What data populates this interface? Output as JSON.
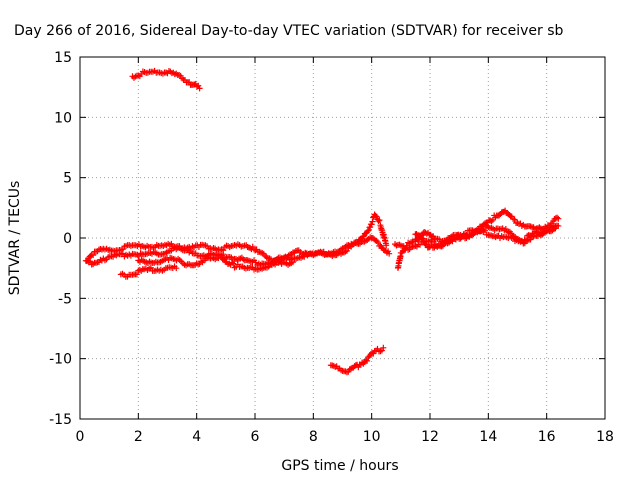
{
  "chart_data": {
    "type": "scatter",
    "title": "Day 266 of 2016, Sidereal Day-to-day VTEC variation (SDTVAR) for receiver sb",
    "xlabel": "GPS time / hours",
    "ylabel": "SDTVAR / TECUs",
    "xlim": [
      0,
      18
    ],
    "ylim": [
      -15,
      15
    ],
    "xticks": [
      0,
      2,
      4,
      6,
      8,
      10,
      12,
      14,
      16,
      18
    ],
    "yticks": [
      -15,
      -10,
      -5,
      0,
      5,
      10,
      15
    ],
    "xtick_labels": [
      "0",
      "2",
      "4",
      "6",
      "8",
      "10",
      "12",
      "14",
      "16",
      "18"
    ],
    "ytick_labels": [
      "-15",
      "-10",
      "-5",
      "0",
      "5",
      "10",
      "15"
    ],
    "grid": true,
    "marker": "plus",
    "color": "#ff0000",
    "series": [
      {
        "points": [
          [
            1.8,
            13.4
          ],
          [
            2.1,
            13.6
          ],
          [
            2.5,
            13.7
          ],
          [
            2.9,
            13.8
          ],
          [
            3.3,
            13.5
          ],
          [
            3.7,
            13.0
          ],
          [
            4.1,
            12.4
          ]
        ]
      },
      {
        "points": [
          [
            0.2,
            -1.9
          ],
          [
            0.4,
            -1.3
          ],
          [
            0.8,
            -1.0
          ],
          [
            1.3,
            -0.9
          ],
          [
            1.8,
            -0.7
          ],
          [
            2.3,
            -0.6
          ],
          [
            2.8,
            -0.7
          ],
          [
            3.3,
            -0.6
          ],
          [
            3.8,
            -0.8
          ],
          [
            4.3,
            -0.7
          ],
          [
            4.8,
            -0.9
          ],
          [
            5.3,
            -0.7
          ],
          [
            5.7,
            -0.5
          ],
          [
            6.1,
            -1.2
          ],
          [
            6.6,
            -1.8
          ],
          [
            7.1,
            -1.6
          ],
          [
            7.5,
            -1.1
          ],
          [
            8.0,
            -1.3
          ],
          [
            8.5,
            -1.5
          ],
          [
            9.0,
            -1.1
          ],
          [
            9.5,
            -0.5
          ],
          [
            9.9,
            0.8
          ],
          [
            10.1,
            1.8
          ],
          [
            10.3,
            1.2
          ],
          [
            10.5,
            -0.6
          ]
        ]
      },
      {
        "points": [
          [
            0.3,
            -2.1
          ],
          [
            0.8,
            -1.7
          ],
          [
            1.3,
            -1.5
          ],
          [
            1.8,
            -1.3
          ],
          [
            2.3,
            -1.4
          ],
          [
            2.8,
            -1.2
          ],
          [
            3.3,
            -0.9
          ],
          [
            3.8,
            -1.2
          ],
          [
            4.3,
            -1.4
          ],
          [
            4.8,
            -1.5
          ],
          [
            5.3,
            -1.6
          ],
          [
            5.8,
            -2.0
          ],
          [
            6.3,
            -2.1
          ],
          [
            6.8,
            -1.8
          ],
          [
            7.3,
            -1.6
          ],
          [
            7.8,
            -1.4
          ],
          [
            8.3,
            -1.3
          ],
          [
            8.8,
            -1.1
          ],
          [
            9.3,
            -0.6
          ],
          [
            9.7,
            -0.2
          ],
          [
            10.0,
            0.0
          ],
          [
            10.3,
            -0.6
          ],
          [
            10.6,
            -1.3
          ]
        ]
      },
      {
        "points": [
          [
            1.4,
            -3.1
          ],
          [
            1.8,
            -3.0
          ],
          [
            2.2,
            -2.7
          ],
          [
            2.6,
            -2.6
          ],
          [
            3.0,
            -2.5
          ],
          [
            3.3,
            -2.5
          ]
        ]
      },
      {
        "points": [
          [
            2.0,
            -2.0
          ],
          [
            2.6,
            -1.9
          ],
          [
            3.2,
            -1.8
          ],
          [
            3.8,
            -2.2
          ],
          [
            4.2,
            -1.9
          ],
          [
            4.8,
            -1.6
          ],
          [
            5.3,
            -2.3
          ],
          [
            5.8,
            -2.6
          ],
          [
            6.3,
            -2.4
          ],
          [
            6.8,
            -2.2
          ],
          [
            7.3,
            -2.0
          ]
        ]
      },
      {
        "points": [
          [
            8.6,
            -10.7
          ],
          [
            8.9,
            -10.8
          ],
          [
            9.2,
            -11.1
          ],
          [
            9.5,
            -10.6
          ],
          [
            9.8,
            -10.1
          ],
          [
            10.1,
            -9.5
          ],
          [
            10.4,
            -9.1
          ]
        ]
      },
      {
        "points": [
          [
            10.9,
            -2.6
          ],
          [
            11.0,
            -1.2
          ],
          [
            11.2,
            -0.6
          ],
          [
            11.5,
            -0.3
          ],
          [
            11.8,
            0.6
          ],
          [
            12.2,
            -0.2
          ],
          [
            12.6,
            -0.2
          ],
          [
            13.0,
            -0.1
          ],
          [
            13.4,
            0.3
          ],
          [
            13.8,
            0.9
          ],
          [
            14.2,
            1.7
          ],
          [
            14.5,
            2.3
          ],
          [
            14.8,
            1.6
          ],
          [
            15.2,
            1.1
          ],
          [
            15.6,
            0.7
          ],
          [
            16.0,
            1.0
          ],
          [
            16.4,
            1.6
          ]
        ]
      },
      {
        "points": [
          [
            10.8,
            -0.6
          ],
          [
            11.2,
            -0.9
          ],
          [
            11.6,
            -0.5
          ],
          [
            12.0,
            -0.3
          ],
          [
            12.4,
            -0.6
          ],
          [
            12.8,
            0.2
          ],
          [
            13.2,
            0.1
          ],
          [
            13.6,
            0.5
          ],
          [
            14.0,
            0.4
          ],
          [
            14.4,
            0.1
          ],
          [
            14.8,
            -0.1
          ],
          [
            15.2,
            -0.2
          ],
          [
            15.6,
            0.4
          ],
          [
            16.0,
            0.6
          ],
          [
            16.4,
            1.0
          ]
        ]
      },
      {
        "points": [
          [
            11.5,
            0.4
          ],
          [
            12.0,
            -0.8
          ],
          [
            12.6,
            -0.3
          ],
          [
            13.3,
            0.5
          ],
          [
            14.0,
            0.9
          ],
          [
            14.6,
            0.6
          ],
          [
            15.2,
            -0.3
          ],
          [
            15.8,
            0.2
          ],
          [
            16.3,
            0.8
          ]
        ]
      }
    ]
  }
}
